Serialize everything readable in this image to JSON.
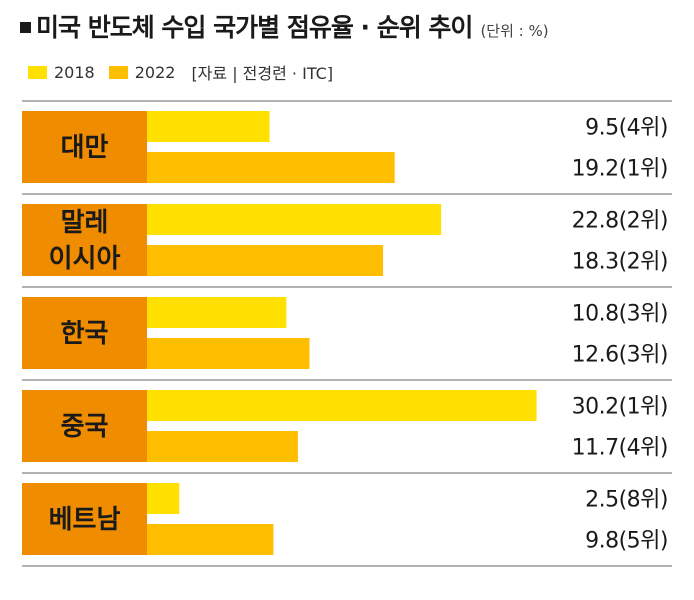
{
  "header": {
    "title": "미국 반도체 수입 국가별 점유율 · 순위 추이",
    "unit": "(단위 : %)",
    "source": "[자료 | 전경련 · ITC]"
  },
  "colors": {
    "label_box": "#F08C00",
    "series_2018": "#FFE000",
    "series_2022": "#FFBE00",
    "divider": "#9a9a9a"
  },
  "chart_data": {
    "type": "bar",
    "orientation": "horizontal",
    "categories": [
      [
        "대만"
      ],
      [
        "말레",
        "이시아"
      ],
      [
        "한국"
      ],
      [
        "중국"
      ],
      [
        "베트남"
      ]
    ],
    "series": [
      {
        "name": "2018",
        "values": [
          9.5,
          22.8,
          10.8,
          30.2,
          2.5
        ],
        "labels": [
          "9.5(4위)",
          "22.8(2위)",
          "10.8(3위)",
          "30.2(1위)",
          "2.5(8위)"
        ]
      },
      {
        "name": "2022",
        "values": [
          19.2,
          18.3,
          12.6,
          11.7,
          9.8
        ],
        "labels": [
          "19.2(1위)",
          "18.3(2위)",
          "12.6(3위)",
          "11.7(4위)",
          "9.8(5위)"
        ]
      }
    ],
    "legend": "top-left",
    "grid": false
  }
}
